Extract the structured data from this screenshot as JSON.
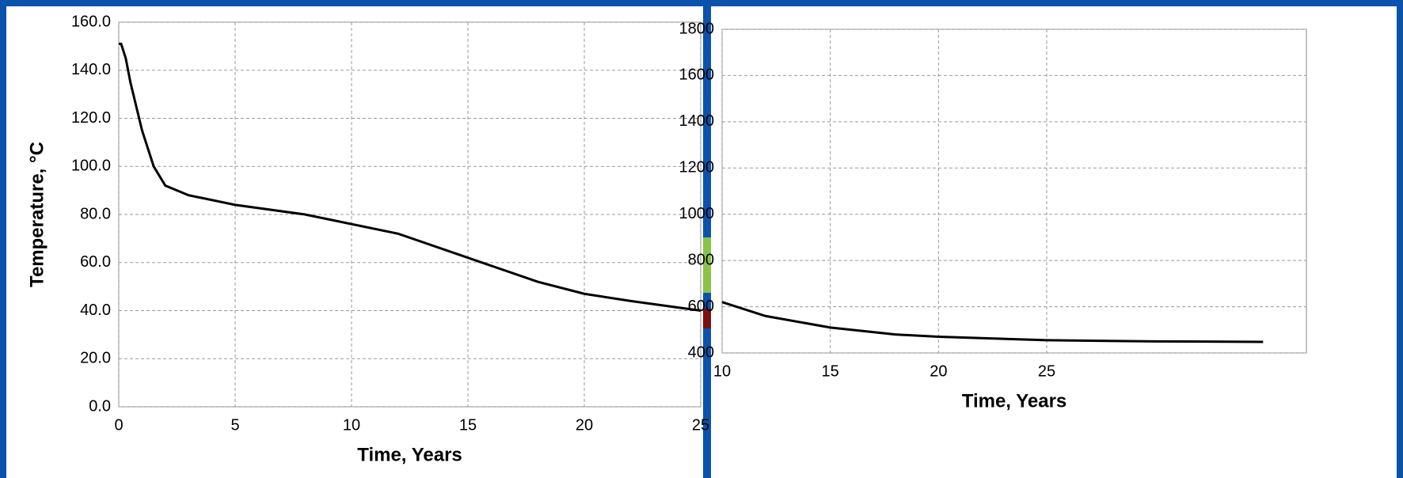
{
  "chart_data": [
    {
      "type": "line",
      "xlabel": "Time, Years",
      "ylabel": "Temperature, °C",
      "x": [
        0,
        0.1,
        0.3,
        0.5,
        1,
        1.5,
        2,
        3,
        5,
        8,
        12,
        15,
        18,
        20,
        22,
        25
      ],
      "series": [
        {
          "color": "#000000",
          "values": [
            151,
            151,
            145,
            135,
            115,
            100,
            92,
            88,
            84,
            80,
            72,
            62,
            52,
            47,
            44,
            40
          ]
        }
      ],
      "xlim": [
        0,
        25
      ],
      "xticks": [
        0,
        5,
        10,
        15,
        20,
        25
      ],
      "ylim": [
        0,
        160
      ],
      "yticks": [
        {
          "value": 0,
          "label": "0.0"
        },
        {
          "value": 20,
          "label": "20.0"
        },
        {
          "value": 40,
          "label": "40.0"
        },
        {
          "value": 60,
          "label": "60.0"
        },
        {
          "value": 80,
          "label": "80.0"
        },
        {
          "value": 100,
          "label": "100.0"
        },
        {
          "value": 120,
          "label": "120.0"
        },
        {
          "value": 140,
          "label": "140.0"
        },
        {
          "value": 160,
          "label": "160.0"
        }
      ],
      "grid": true
    },
    {
      "type": "line",
      "xlabel": "Time, Years",
      "x": [
        10,
        12,
        15,
        18,
        20,
        25,
        30,
        35
      ],
      "series": [
        {
          "color": "#000000",
          "values": [
            620,
            560,
            510,
            480,
            470,
            455,
            450,
            448
          ]
        }
      ],
      "xlim": [
        10,
        37
      ],
      "xticks": [
        10,
        15,
        20,
        25
      ],
      "ylim": [
        400,
        1800
      ],
      "yticks": [
        400,
        600,
        800,
        1000,
        1200,
        1400,
        1600,
        1800
      ],
      "grid": true
    }
  ]
}
